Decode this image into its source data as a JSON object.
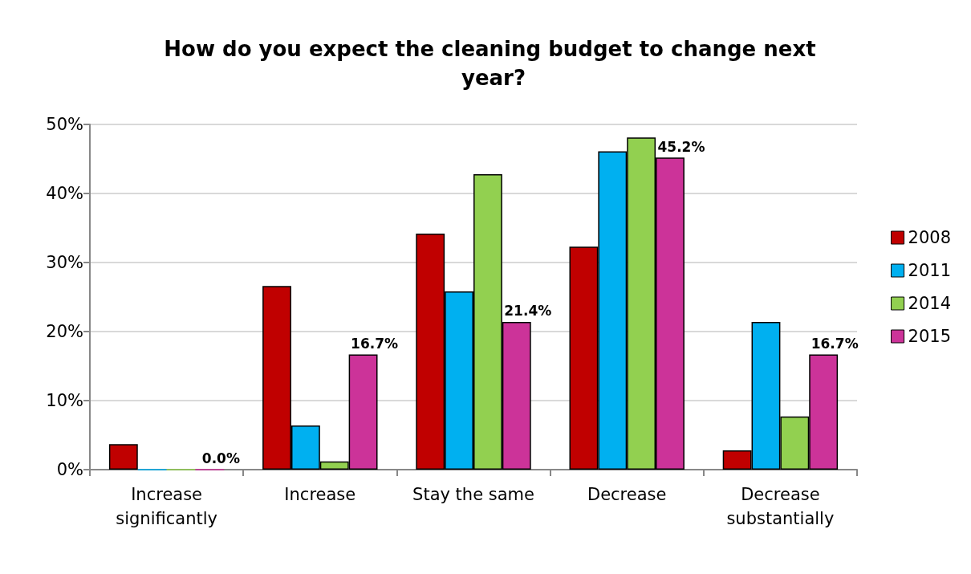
{
  "chart_data": {
    "type": "bar",
    "title": "How do you expect the cleaning budget to change next year?",
    "categories": [
      "Increase\nsignificantly",
      "Increase",
      "Stay the same",
      "Decrease",
      "Decrease\nsubstantially"
    ],
    "series": [
      {
        "name": "2008",
        "color": "#c00000",
        "values": [
          3.7,
          26.6,
          34.2,
          32.3,
          2.8
        ]
      },
      {
        "name": "2011",
        "color": "#00b0f0",
        "values": [
          0,
          6.4,
          25.8,
          46.1,
          21.4
        ]
      },
      {
        "name": "2014",
        "color": "#92d050",
        "values": [
          0,
          1.2,
          42.8,
          48.1,
          7.7
        ]
      },
      {
        "name": "2015",
        "color": "#cc3399",
        "values": [
          0,
          16.7,
          21.4,
          45.2,
          16.7
        ],
        "value_labels": [
          "0.0%",
          "16.7%",
          "21.4%",
          "45.2%",
          "16.7%"
        ]
      }
    ],
    "ylim": [
      0,
      50
    ],
    "yticks": [
      {
        "value": 0,
        "label": "0%"
      },
      {
        "value": 10,
        "label": "10%"
      },
      {
        "value": 20,
        "label": "20%"
      },
      {
        "value": 30,
        "label": "30%"
      },
      {
        "value": 40,
        "label": "40%"
      },
      {
        "value": 50,
        "label": "50%"
      }
    ],
    "grid": "y",
    "legend": "right"
  }
}
